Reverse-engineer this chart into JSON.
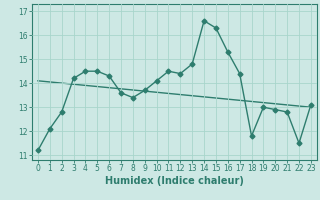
{
  "xlabel": "Humidex (Indice chaleur)",
  "ylabel": "",
  "background_color": "#cde8e4",
  "grid_color": "#a8d5cc",
  "line_color": "#2e7d6e",
  "x_values": [
    0,
    1,
    2,
    3,
    4,
    5,
    6,
    7,
    8,
    9,
    10,
    11,
    12,
    13,
    14,
    15,
    16,
    17,
    18,
    19,
    20,
    21,
    22,
    23
  ],
  "y_values": [
    11.2,
    12.1,
    12.8,
    14.2,
    14.5,
    14.5,
    14.3,
    13.6,
    13.4,
    13.7,
    14.1,
    14.5,
    14.4,
    14.8,
    16.6,
    16.3,
    15.3,
    14.4,
    11.8,
    13.0,
    12.9,
    12.8,
    11.5,
    13.1
  ],
  "trend_x": [
    0,
    23
  ],
  "trend_y": [
    14.1,
    13.0
  ],
  "ylim": [
    10.8,
    17.3
  ],
  "xlim": [
    -0.5,
    23.5
  ],
  "yticks": [
    11,
    12,
    13,
    14,
    15,
    16,
    17
  ],
  "xticks": [
    0,
    1,
    2,
    3,
    4,
    5,
    6,
    7,
    8,
    9,
    10,
    11,
    12,
    13,
    14,
    15,
    16,
    17,
    18,
    19,
    20,
    21,
    22,
    23
  ],
  "tick_fontsize": 5.5,
  "xlabel_fontsize": 7,
  "marker": "D",
  "marker_size": 2.5,
  "line_width": 1.0
}
